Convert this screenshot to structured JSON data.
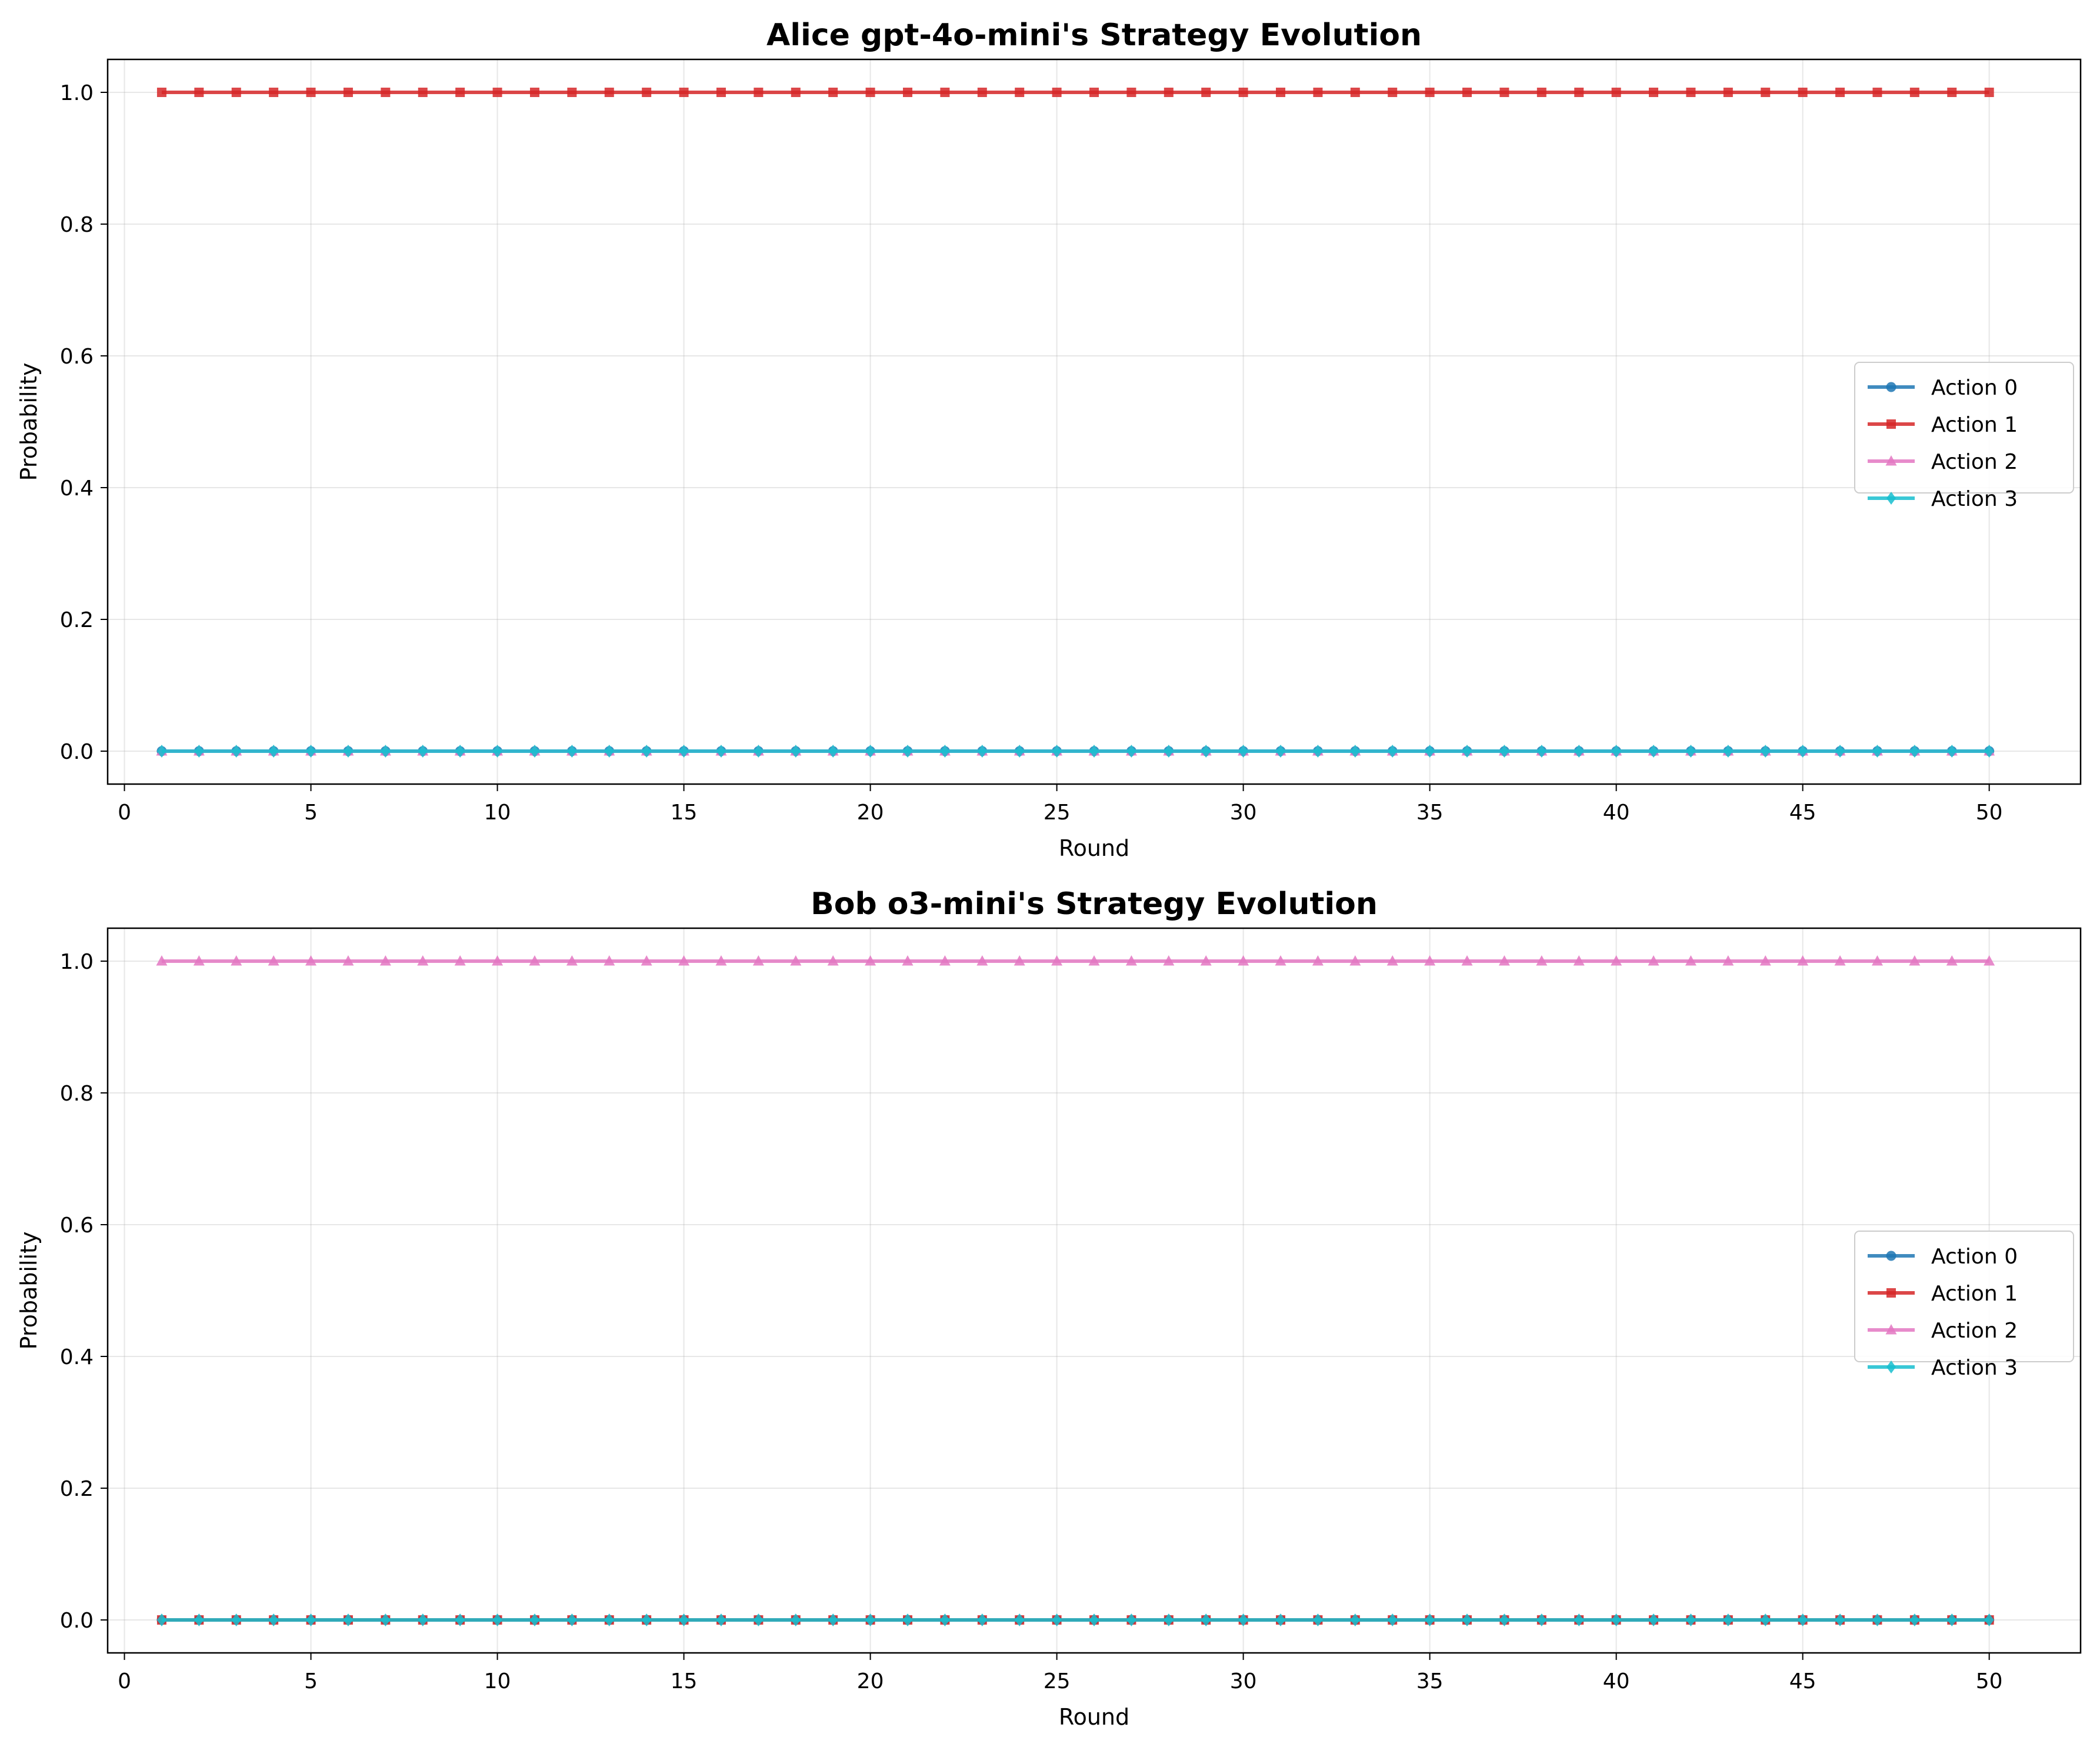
{
  "chart_data": [
    {
      "type": "line",
      "title": "Alice gpt-4o-mini's Strategy Evolution",
      "xlabel": "Round",
      "ylabel": "Probability",
      "xlim": [
        -0.45,
        52.45
      ],
      "ylim": [
        -0.05,
        1.05
      ],
      "xticks": [
        "0",
        "5",
        "10",
        "15",
        "20",
        "25",
        "30",
        "35",
        "40",
        "45",
        "50"
      ],
      "yticks": [
        "0.0",
        "0.2",
        "0.4",
        "0.6",
        "0.8",
        "1.0"
      ],
      "grid": true,
      "legend_position": "center-right",
      "rounds": {
        "start": 1,
        "end": 50
      },
      "series": [
        {
          "name": "Action 0",
          "color": "#1f77b4",
          "marker": "circle",
          "value_all_rounds": 0.0
        },
        {
          "name": "Action 1",
          "color": "#d62728",
          "marker": "square",
          "value_all_rounds": 1.0
        },
        {
          "name": "Action 2",
          "color": "#e377c2",
          "marker": "triangle",
          "value_all_rounds": 0.0
        },
        {
          "name": "Action 3",
          "color": "#17becf",
          "marker": "diamond",
          "value_all_rounds": 0.0
        }
      ]
    },
    {
      "type": "line",
      "title": "Bob o3-mini's Strategy Evolution",
      "xlabel": "Round",
      "ylabel": "Probability",
      "xlim": [
        -0.45,
        52.45
      ],
      "ylim": [
        -0.05,
        1.05
      ],
      "xticks": [
        "0",
        "5",
        "10",
        "15",
        "20",
        "25",
        "30",
        "35",
        "40",
        "45",
        "50"
      ],
      "yticks": [
        "0.0",
        "0.2",
        "0.4",
        "0.6",
        "0.8",
        "1.0"
      ],
      "grid": true,
      "legend_position": "center-right",
      "rounds": {
        "start": 1,
        "end": 50
      },
      "series": [
        {
          "name": "Action 0",
          "color": "#1f77b4",
          "marker": "circle",
          "value_all_rounds": 0.0
        },
        {
          "name": "Action 1",
          "color": "#d62728",
          "marker": "square",
          "value_all_rounds": 0.0
        },
        {
          "name": "Action 2",
          "color": "#e377c2",
          "marker": "triangle",
          "value_all_rounds": 1.0
        },
        {
          "name": "Action 3",
          "color": "#17becf",
          "marker": "diamond",
          "value_all_rounds": 0.0
        }
      ]
    }
  ]
}
